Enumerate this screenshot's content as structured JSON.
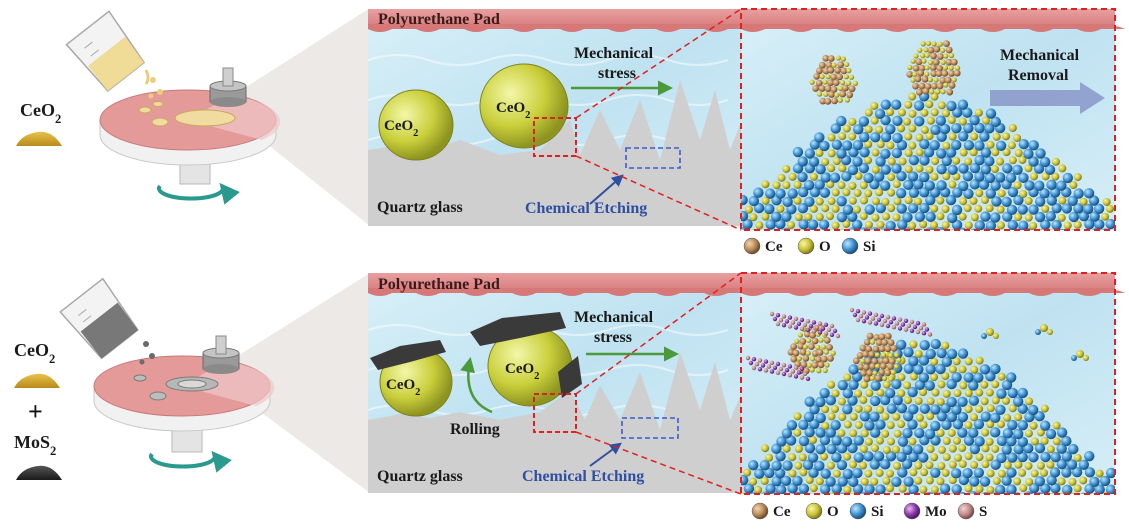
{
  "left": {
    "top_label": "CeO",
    "top_label_sub": "2",
    "bottom_label_1": "CeO",
    "bottom_label_1_sub": "2",
    "plus": "+",
    "bottom_label_2": "MoS",
    "bottom_label_2_sub": "2"
  },
  "panels": [
    {
      "pad_label": "Polyurethane Pad",
      "particle_label": "CeO",
      "particle_sub": "2",
      "stress_line1": "Mechanical",
      "stress_line2": "stress",
      "substrate_label": "Quartz glass",
      "etching_label": "Chemical Etching",
      "removal_line1": "Mechanical",
      "removal_line2": "Removal",
      "legend": [
        {
          "symbol": "Ce",
          "color": "#b98a5a"
        },
        {
          "symbol": "O",
          "color": "#c8c23a"
        },
        {
          "symbol": "Si",
          "color": "#3a8fd0"
        }
      ]
    },
    {
      "pad_label": "Polyurethane Pad",
      "particle_label": "CeO",
      "particle_sub": "2",
      "stress_line1": "Mechanical",
      "stress_line2": "stress",
      "rolling_label": "Rolling",
      "substrate_label": "Quartz glass",
      "etching_label": "Chemical Etching",
      "legend": [
        {
          "symbol": "Ce",
          "color": "#b98a5a"
        },
        {
          "symbol": "O",
          "color": "#c8c23a"
        },
        {
          "symbol": "Si",
          "color": "#3a8fd0"
        },
        {
          "symbol": "Mo",
          "color": "#8a3aa8"
        },
        {
          "symbol": "S",
          "color": "#c08a8a"
        }
      ]
    }
  ],
  "colors": {
    "pad": "#e08888",
    "slurry": "#cde9f4",
    "substrate": "#cfcfcf",
    "ceria": "#c9cf3a",
    "stress_arrow": "#4a9a3a",
    "etch_arrow": "#2f4fa0",
    "zoom_box": "#e02020",
    "etch_box": "#3a5bd0"
  }
}
